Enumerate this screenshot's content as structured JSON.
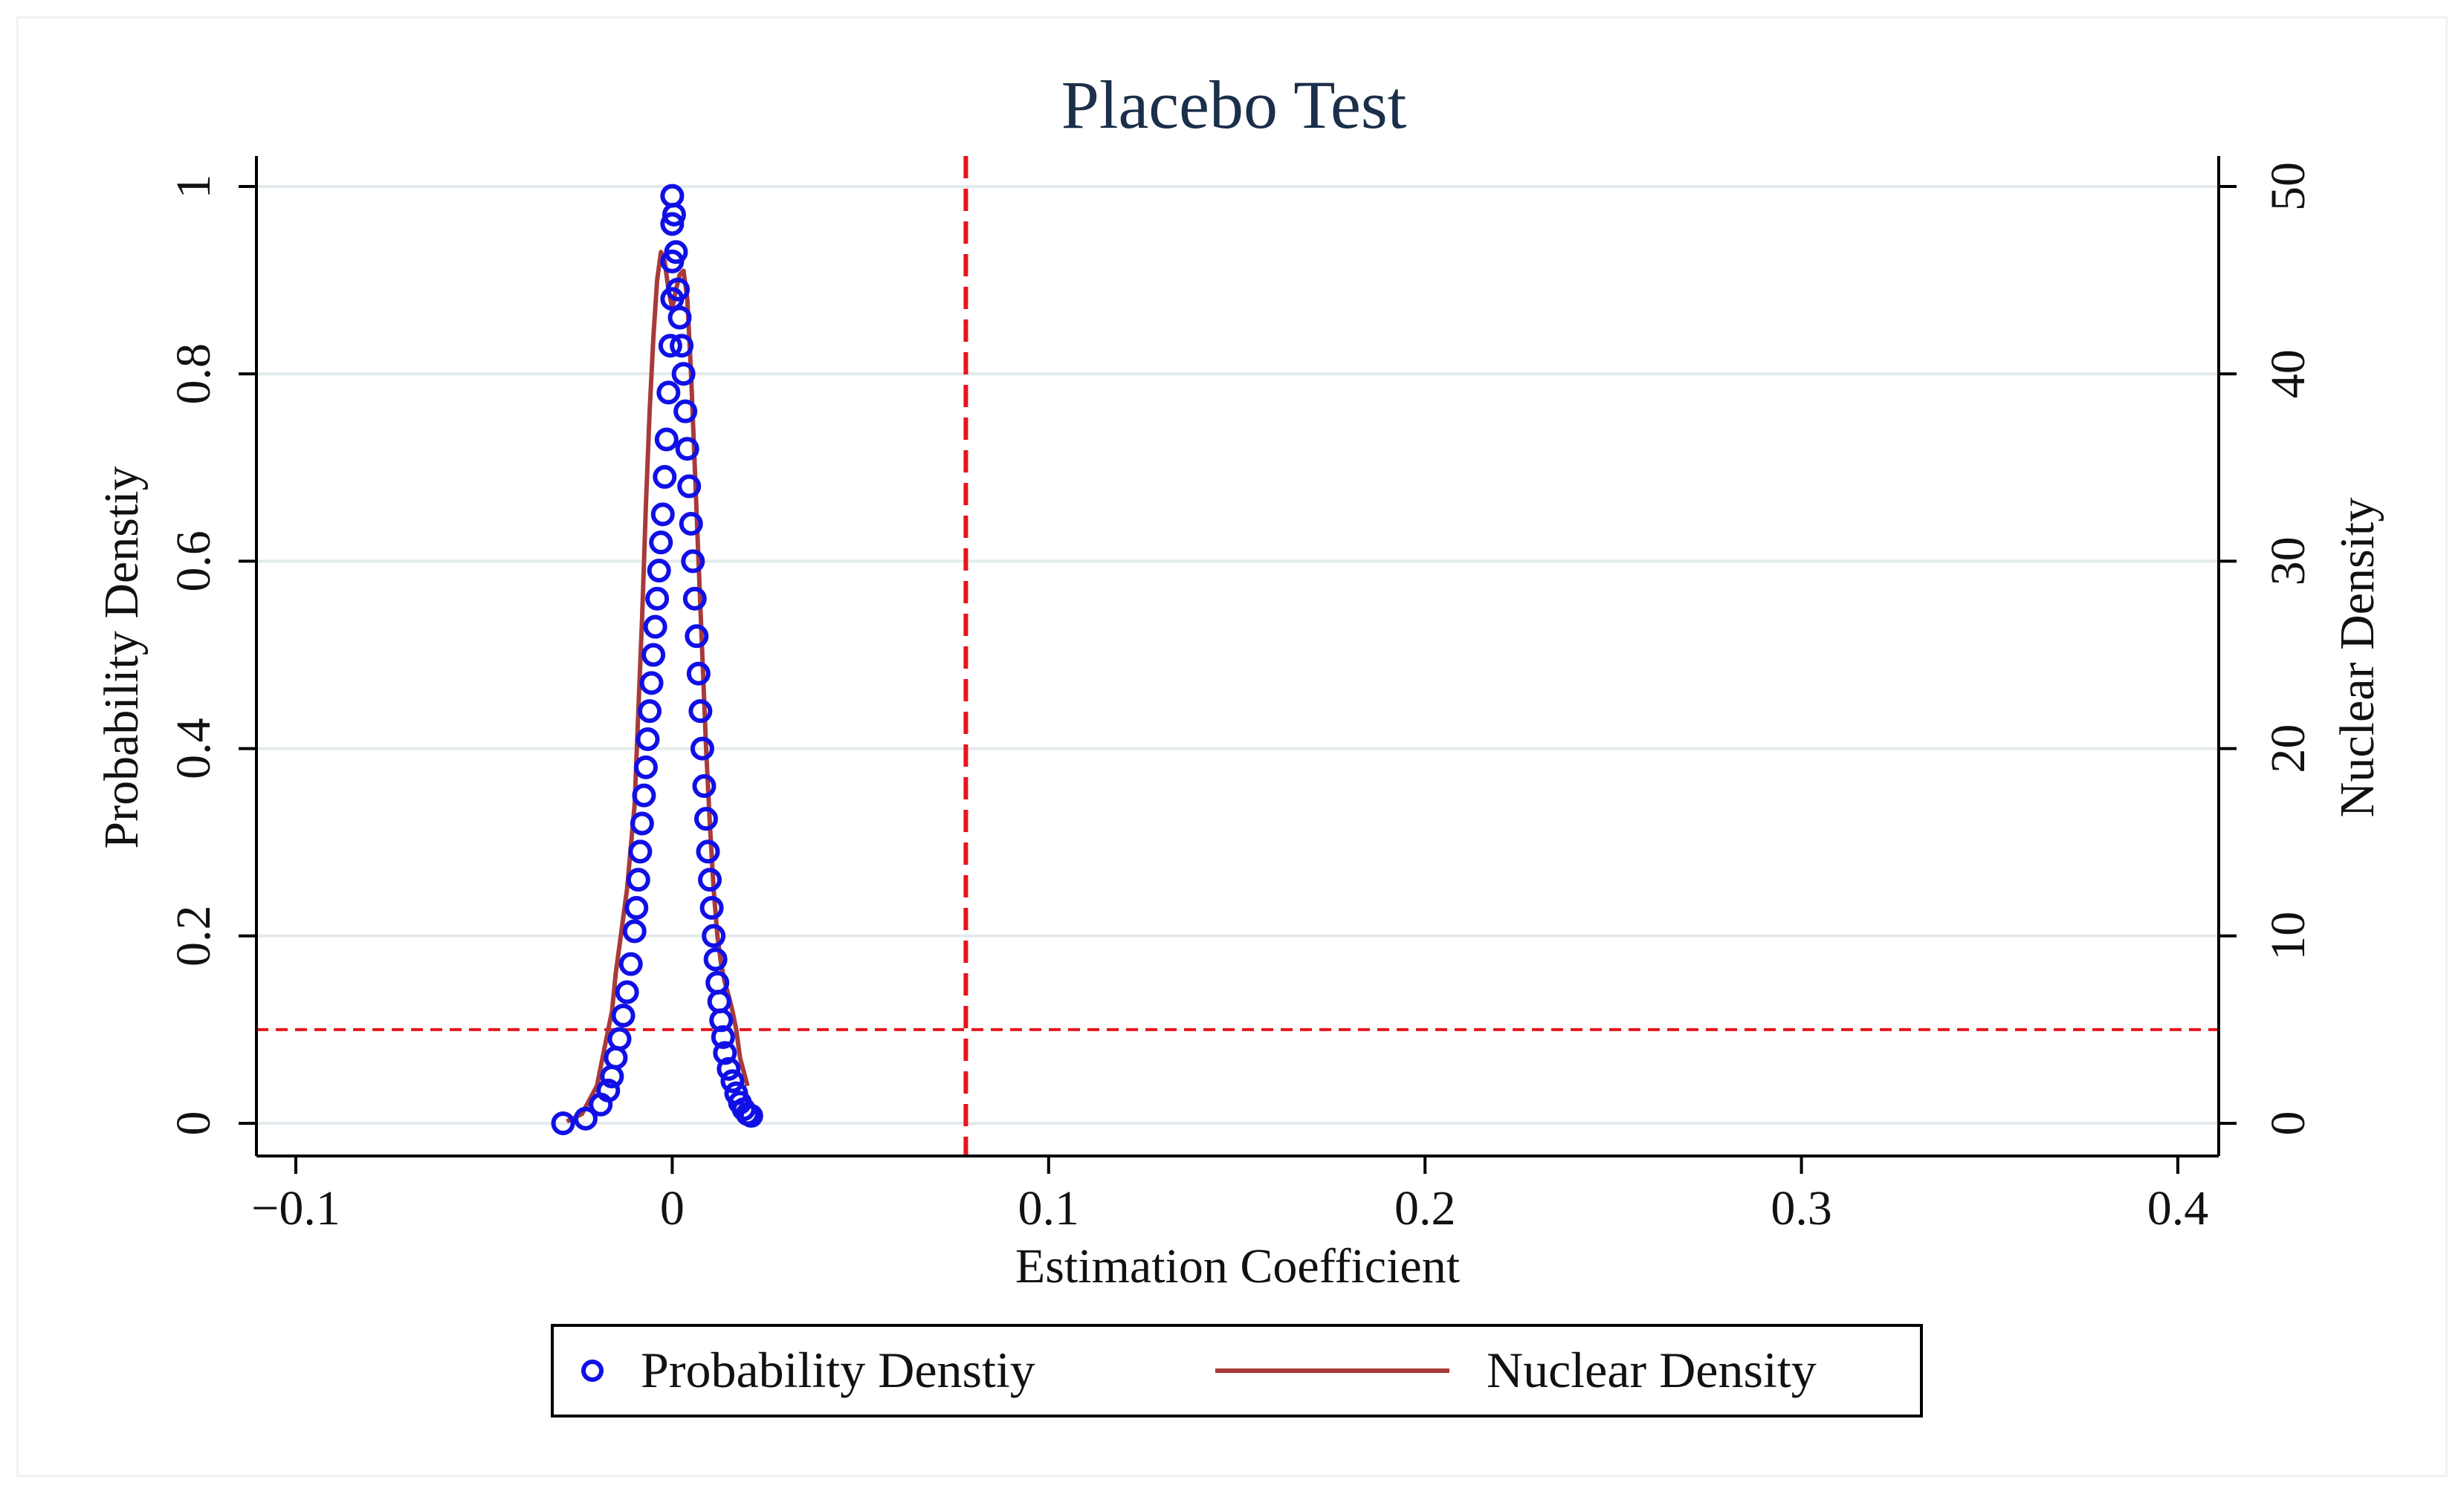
{
  "chart_data": {
    "type": "scatter",
    "title": "Placebo Test",
    "xlabel": "Estimation Coefficient",
    "ylabel_left": "Probability Denstiy",
    "ylabel_right": "Nuclear Density",
    "xlim": [
      -0.1,
      0.4
    ],
    "ylim_left": [
      0,
      1
    ],
    "ylim_right": [
      0,
      50
    ],
    "x_ticks": [
      -0.1,
      0,
      0.1,
      0.2,
      0.3,
      0.4
    ],
    "x_tick_labels": [
      "−0.1",
      "0",
      "0.1",
      "0.2",
      "0.3",
      "0.4"
    ],
    "y_ticks_left": [
      0,
      0.2,
      0.4,
      0.6,
      0.8,
      1
    ],
    "y_tick_labels_left": [
      "0",
      "0.2",
      "0.4",
      "0.6",
      "0.8",
      "1"
    ],
    "y_ticks_right": [
      0,
      10,
      20,
      30,
      40,
      50
    ],
    "y_tick_labels_right": [
      "0",
      "10",
      "20",
      "30",
      "40",
      "50"
    ],
    "grid": true,
    "reference_lines": [
      {
        "orientation": "vertical",
        "value": 0.078,
        "style": "dashed",
        "color": "#e8141c"
      },
      {
        "orientation": "horizontal",
        "value": 0.1,
        "style": "dashed",
        "color": "#e8141c"
      }
    ],
    "series": [
      {
        "name": "Probability Denstiy",
        "kind": "scatter",
        "axis": "left",
        "color": "#1010e6",
        "marker": "hollow-circle",
        "points": [
          [
            -0.029,
            0.0
          ],
          [
            -0.023,
            0.005
          ],
          [
            -0.019,
            0.02
          ],
          [
            -0.017,
            0.035
          ],
          [
            -0.016,
            0.05
          ],
          [
            -0.015,
            0.07
          ],
          [
            -0.014,
            0.09
          ],
          [
            -0.013,
            0.115
          ],
          [
            -0.012,
            0.14
          ],
          [
            -0.011,
            0.17
          ],
          [
            -0.01,
            0.205
          ],
          [
            -0.0095,
            0.23
          ],
          [
            -0.009,
            0.26
          ],
          [
            -0.0085,
            0.29
          ],
          [
            -0.008,
            0.32
          ],
          [
            -0.0075,
            0.35
          ],
          [
            -0.007,
            0.38
          ],
          [
            -0.0065,
            0.41
          ],
          [
            -0.006,
            0.44
          ],
          [
            -0.0055,
            0.47
          ],
          [
            -0.005,
            0.5
          ],
          [
            -0.0045,
            0.53
          ],
          [
            -0.004,
            0.56
          ],
          [
            -0.0035,
            0.59
          ],
          [
            -0.003,
            0.62
          ],
          [
            -0.0025,
            0.65
          ],
          [
            -0.002,
            0.69
          ],
          [
            -0.0015,
            0.73
          ],
          [
            -0.001,
            0.78
          ],
          [
            -0.0005,
            0.83
          ],
          [
            0.0,
            0.88
          ],
          [
            0.0,
            0.92
          ],
          [
            0.0,
            0.96
          ],
          [
            0.0,
            0.99
          ],
          [
            0.0005,
            0.97
          ],
          [
            0.001,
            0.93
          ],
          [
            0.0015,
            0.89
          ],
          [
            0.002,
            0.86
          ],
          [
            0.0025,
            0.83
          ],
          [
            0.003,
            0.8
          ],
          [
            0.0035,
            0.76
          ],
          [
            0.004,
            0.72
          ],
          [
            0.0045,
            0.68
          ],
          [
            0.005,
            0.64
          ],
          [
            0.0055,
            0.6
          ],
          [
            0.006,
            0.56
          ],
          [
            0.0065,
            0.52
          ],
          [
            0.007,
            0.48
          ],
          [
            0.0075,
            0.44
          ],
          [
            0.008,
            0.4
          ],
          [
            0.0085,
            0.36
          ],
          [
            0.009,
            0.325
          ],
          [
            0.0095,
            0.29
          ],
          [
            0.01,
            0.26
          ],
          [
            0.0105,
            0.23
          ],
          [
            0.011,
            0.2
          ],
          [
            0.0115,
            0.175
          ],
          [
            0.012,
            0.15
          ],
          [
            0.0125,
            0.13
          ],
          [
            0.013,
            0.11
          ],
          [
            0.0135,
            0.092
          ],
          [
            0.014,
            0.075
          ],
          [
            0.015,
            0.058
          ],
          [
            0.016,
            0.045
          ],
          [
            0.017,
            0.032
          ],
          [
            0.018,
            0.022
          ],
          [
            0.019,
            0.015
          ],
          [
            0.02,
            0.01
          ],
          [
            0.021,
            0.008
          ]
        ]
      },
      {
        "name": "Nuclear Density",
        "kind": "line",
        "axis": "right",
        "color": "#a83a3a",
        "points": [
          [
            -0.028,
            0.1
          ],
          [
            -0.024,
            0.5
          ],
          [
            -0.02,
            2.0
          ],
          [
            -0.018,
            4.0
          ],
          [
            -0.016,
            6.0
          ],
          [
            -0.015,
            8.0
          ],
          [
            -0.014,
            9.5
          ],
          [
            -0.012,
            12.5
          ],
          [
            -0.01,
            17.0
          ],
          [
            -0.009,
            22.0
          ],
          [
            -0.008,
            27.0
          ],
          [
            -0.007,
            33.0
          ],
          [
            -0.006,
            38.0
          ],
          [
            -0.005,
            42.0
          ],
          [
            -0.004,
            45.0
          ],
          [
            -0.003,
            46.5
          ],
          [
            -0.002,
            46.0
          ],
          [
            -0.001,
            44.5
          ],
          [
            0.0,
            43.5
          ],
          [
            0.001,
            44.5
          ],
          [
            0.002,
            45.3
          ],
          [
            0.003,
            45.5
          ],
          [
            0.004,
            44.0
          ],
          [
            0.005,
            40.0
          ],
          [
            0.006,
            35.0
          ],
          [
            0.007,
            30.0
          ],
          [
            0.008,
            25.0
          ],
          [
            0.009,
            20.0
          ],
          [
            0.01,
            16.0
          ],
          [
            0.011,
            12.5
          ],
          [
            0.012,
            10.0
          ],
          [
            0.013,
            8.5
          ],
          [
            0.014,
            7.5
          ],
          [
            0.015,
            6.8
          ],
          [
            0.016,
            6.0
          ],
          [
            0.017,
            5.0
          ],
          [
            0.018,
            3.5
          ],
          [
            0.02,
            2.0
          ]
        ]
      }
    ],
    "legend": {
      "position": "bottom-center",
      "entries": [
        {
          "label": "Probability Denstiy",
          "symbol": "hollow-circle",
          "color": "#1010e6"
        },
        {
          "label": "Nuclear Density",
          "symbol": "line",
          "color": "#a83a3a"
        }
      ]
    }
  }
}
